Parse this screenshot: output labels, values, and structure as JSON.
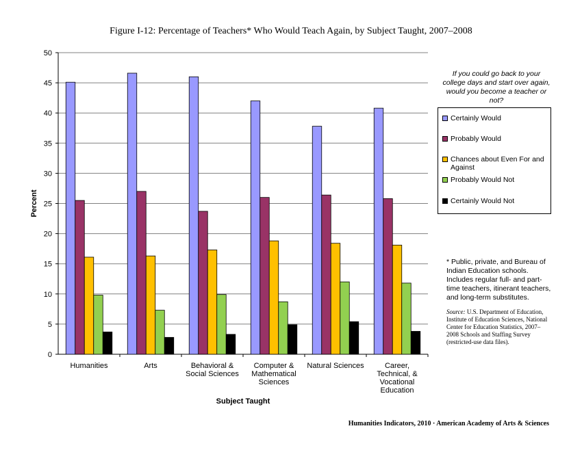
{
  "chart_data": {
    "type": "bar",
    "title": "Figure I-12: Percentage of Teachers* Who Would Teach Again, by Subject Taught, 2007–2008",
    "xlabel": "Subject Taught",
    "ylabel": "Percent",
    "ylim": [
      0,
      50
    ],
    "yticks": [
      "0",
      "5",
      "10",
      "15",
      "20",
      "25",
      "30",
      "35",
      "40",
      "45",
      "50"
    ],
    "categories": [
      "Humanities",
      "Arts",
      "Behavioral & Social Sciences",
      "Computer & Mathematical Sciences",
      "Natural Sciences",
      "Career, Technical, & Vocational Education"
    ],
    "series": [
      {
        "name": "Certainly Would",
        "color": "#9999ff",
        "values": [
          45.1,
          46.6,
          46.0,
          42.0,
          37.8,
          40.8
        ]
      },
      {
        "name": "Probably Would",
        "color": "#993366",
        "values": [
          25.5,
          27.0,
          23.7,
          26.0,
          26.4,
          25.8
        ]
      },
      {
        "name": "Chances about Even For and Against",
        "color": "#ffc000",
        "values": [
          16.1,
          16.3,
          17.3,
          18.8,
          18.4,
          18.1
        ]
      },
      {
        "name": "Probably Would Not",
        "color": "#92d050",
        "values": [
          9.8,
          7.3,
          9.9,
          8.7,
          12.0,
          11.8
        ]
      },
      {
        "name": "Certainly Would Not",
        "color": "#000000",
        "values": [
          3.7,
          2.8,
          3.3,
          4.9,
          5.4,
          3.8
        ]
      }
    ],
    "grid": true,
    "legend": "right"
  },
  "legend_question": "If you could go back to your college days and start over again, would you become a teacher or not?",
  "footnote": "* Public, private, and Bureau of Indian Education schools. Includes regular full- and part-time teachers, itinerant teachers, and long-term substitutes.",
  "source": {
    "lead": "Source:",
    "text": "U.S. Department of Education, Institute of Education Sciences, National Center for Education Statistics, 2007–2008 Schools and Staffing Survey (restricted-use data files)."
  },
  "credit": "Humanities Indicators, 2010 · American Academy of Arts & Sciences"
}
